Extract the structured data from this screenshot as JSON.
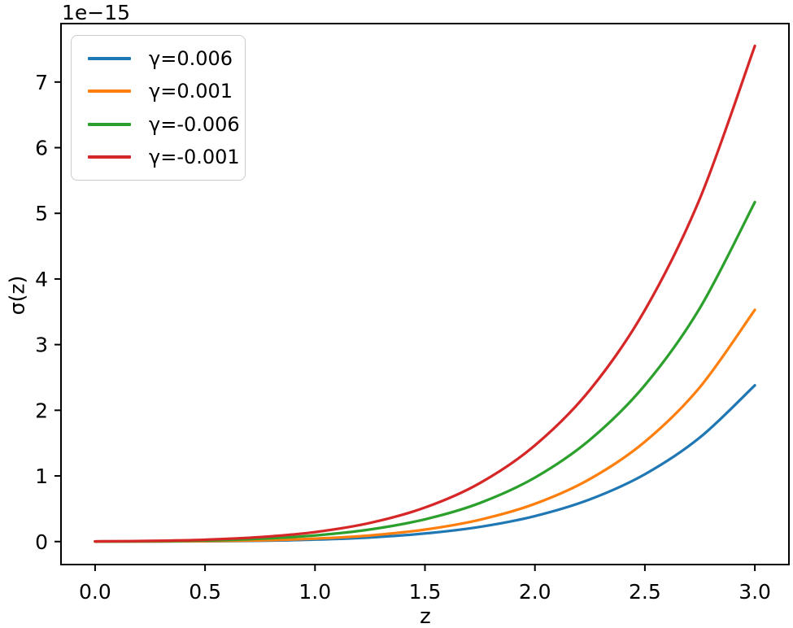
{
  "chart_data": {
    "type": "line",
    "title": "",
    "xlabel": "z",
    "ylabel": "σ(z)",
    "y_offset_text": "1e−15",
    "y_scale_factor": 1e-15,
    "xlim": [
      -0.155,
      3.155
    ],
    "ylim": [
      -0.35,
      7.89
    ],
    "xticks": [
      0,
      0.5,
      1,
      1.5,
      2,
      2.5,
      3
    ],
    "xtick_labels": [
      "0.0",
      "0.5",
      "1.0",
      "1.5",
      "2.0",
      "2.5",
      "3.0"
    ],
    "yticks": [
      0,
      1,
      2,
      3,
      4,
      5,
      6,
      7
    ],
    "ytick_labels": [
      "0",
      "1",
      "2",
      "3",
      "4",
      "5",
      "6",
      "7"
    ],
    "grid": false,
    "legend_position": "upper left",
    "x": [
      0,
      0.25,
      0.5,
      0.75,
      1.0,
      1.25,
      1.5,
      1.75,
      2.0,
      2.25,
      2.5,
      2.75,
      3.0
    ],
    "series": [
      {
        "name": "γ=0.006",
        "color": "#1f77b4",
        "values": [
          0.0,
          0.002,
          0.005,
          0.013,
          0.03,
          0.063,
          0.123,
          0.224,
          0.388,
          0.643,
          1.026,
          1.585,
          2.38
        ]
      },
      {
        "name": "γ=0.001",
        "color": "#ff7f0e",
        "values": [
          0.001,
          0.002,
          0.007,
          0.019,
          0.045,
          0.094,
          0.183,
          0.333,
          0.575,
          0.953,
          1.521,
          2.351,
          3.53
        ]
      },
      {
        "name": "γ=-0.006",
        "color": "#2ca02c",
        "values": [
          0.002,
          0.006,
          0.017,
          0.043,
          0.093,
          0.184,
          0.339,
          0.588,
          0.975,
          1.551,
          2.383,
          3.557,
          5.17
        ]
      },
      {
        "name": "γ=-0.001",
        "color": "#d62728",
        "values": [
          0.003,
          0.01,
          0.028,
          0.068,
          0.145,
          0.284,
          0.518,
          0.891,
          1.465,
          2.31,
          3.526,
          5.225,
          7.55
        ]
      }
    ],
    "colors": {
      "spine": "#000000",
      "tick_text": "#000000",
      "legend_border": "#cccccc",
      "background": "#ffffff"
    }
  }
}
